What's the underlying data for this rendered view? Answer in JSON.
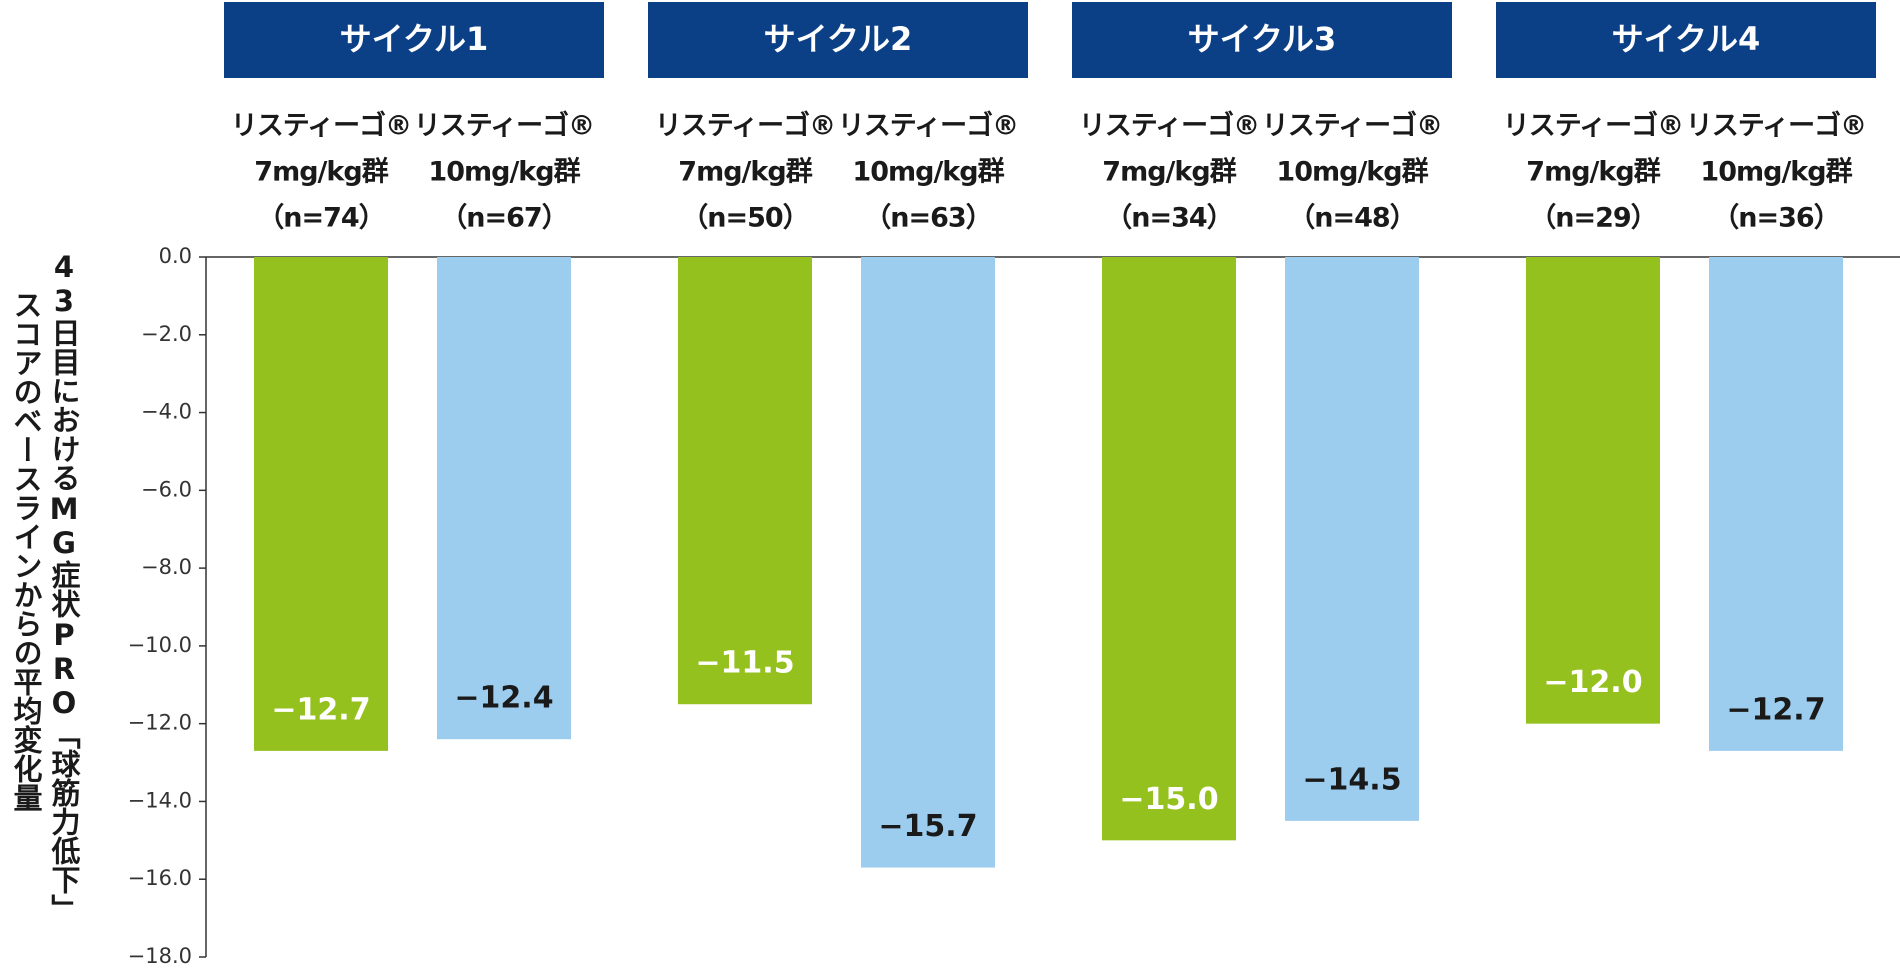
{
  "chart_data": {
    "type": "grouped_bar",
    "ylabel": [
      "43日目におけるMG症状PRO「球筋力低下」",
      "スコアのベースラインからの平均変化量"
    ],
    "ylim": [
      -18,
      0
    ],
    "yticks": [
      {
        "value": 0,
        "label": "0.0"
      },
      {
        "value": -2,
        "label": "−2.0"
      },
      {
        "value": -4,
        "label": "−4.0"
      },
      {
        "value": -6,
        "label": "−6.0"
      },
      {
        "value": -8,
        "label": "−8.0"
      },
      {
        "value": -10,
        "label": "−10.0"
      },
      {
        "value": -12,
        "label": "−12.0"
      },
      {
        "value": -14,
        "label": "−14.0"
      },
      {
        "value": -16,
        "label": "−16.0"
      },
      {
        "value": -18,
        "label": "−18.0"
      }
    ],
    "header_color": "#0b3f86",
    "colors": [
      "#95c11f",
      "#9dcdee"
    ],
    "value_label_colors": [
      "#ffffff",
      "#1a1a1a"
    ],
    "groups": [
      {
        "name": "サイクル1",
        "bars": [
          {
            "label": [
              "リスティーゴ®",
              "7mg/kg群",
              "（n=74）"
            ],
            "value": -12.7,
            "value_label": "−12.7"
          },
          {
            "label": [
              "リスティーゴ®",
              "10mg/kg群",
              "（n=67）"
            ],
            "value": -12.4,
            "value_label": "−12.4"
          }
        ]
      },
      {
        "name": "サイクル2",
        "bars": [
          {
            "label": [
              "リスティーゴ®",
              "7mg/kg群",
              "（n=50）"
            ],
            "value": -11.5,
            "value_label": "−11.5"
          },
          {
            "label": [
              "リスティーゴ®",
              "10mg/kg群",
              "（n=63）"
            ],
            "value": -15.7,
            "value_label": "−15.7"
          }
        ]
      },
      {
        "name": "サイクル3",
        "bars": [
          {
            "label": [
              "リスティーゴ®",
              "7mg/kg群",
              "（n=34）"
            ],
            "value": -15.0,
            "value_label": "−15.0"
          },
          {
            "label": [
              "リスティーゴ®",
              "10mg/kg群",
              "（n=48）"
            ],
            "value": -14.5,
            "value_label": "−14.5"
          }
        ]
      },
      {
        "name": "サイクル4",
        "bars": [
          {
            "label": [
              "リスティーゴ®",
              "7mg/kg群",
              "（n=29）"
            ],
            "value": -12.0,
            "value_label": "−12.0"
          },
          {
            "label": [
              "リスティーゴ®",
              "10mg/kg群",
              "（n=36）"
            ],
            "value": -12.7,
            "value_label": "−12.7"
          }
        ]
      }
    ]
  }
}
